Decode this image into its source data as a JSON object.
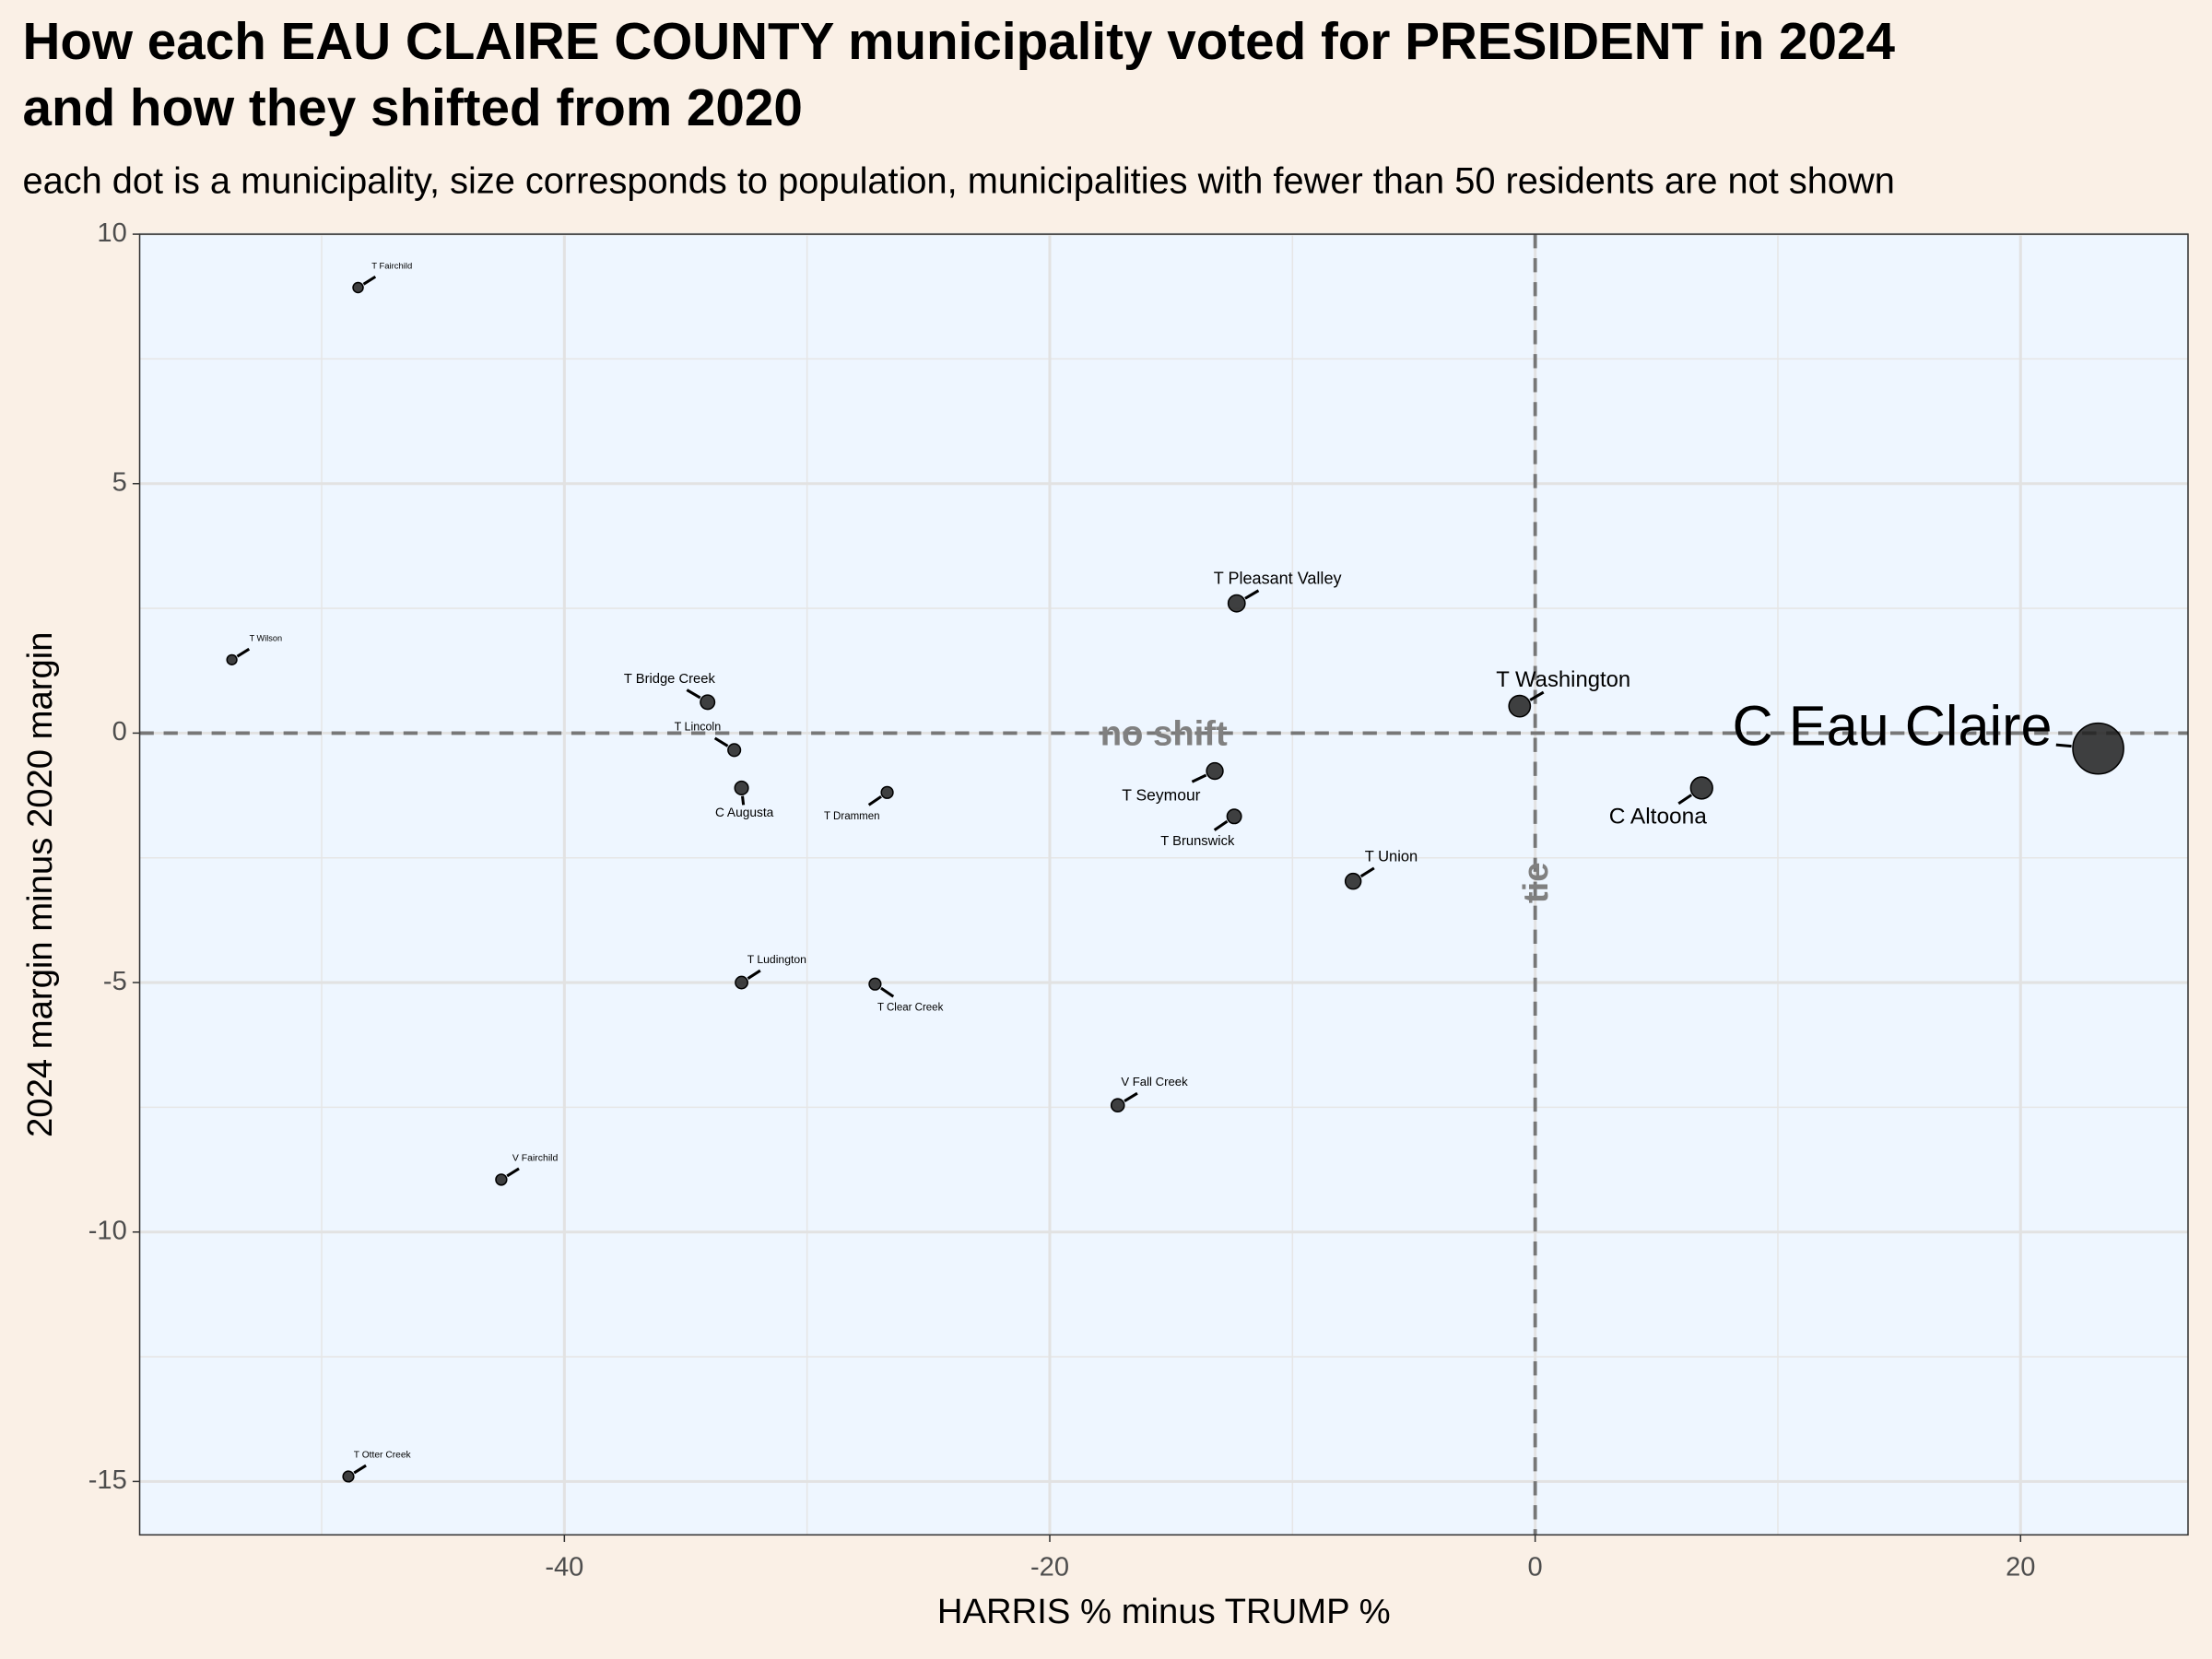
{
  "chart_data": {
    "type": "scatter",
    "title_lines": [
      "How each EAU CLAIRE COUNTY municipality voted for PRESIDENT in 2024",
      "and how they shifted from 2020"
    ],
    "subtitle": "each dot is a municipality, size corresponds to population, municipalities with fewer than 50 residents are not shown",
    "x_label": "HARRIS % minus TRUMP %",
    "y_label": "2024 margin minus 2020 margin",
    "xlim": [
      -57.5,
      26.9
    ],
    "ylim": [
      -16.07,
      10
    ],
    "xticks": [
      -40,
      -20,
      0,
      20
    ],
    "yticks": [
      -15,
      -10,
      -5,
      0,
      5,
      10
    ],
    "x_minor_grid": [
      -50,
      -30,
      -10,
      10
    ],
    "y_minor_grid": [
      -12.5,
      -7.5,
      -2.5,
      2.5,
      7.5
    ],
    "grid": true,
    "color": "#1e1e1e",
    "annotations": [
      {
        "text": "no shift",
        "x": -15.3,
        "y": 0
      },
      {
        "text": "tie",
        "x": 0,
        "y": -3.0
      }
    ],
    "points": [
      {
        "name": "T Fairchild",
        "x": -48.5,
        "y": 8.93,
        "population": 350
      },
      {
        "name": "T Wilson",
        "x": -53.7,
        "y": 1.47,
        "population": 300
      },
      {
        "name": "T Bridge Creek",
        "x": -34.1,
        "y": 0.62,
        "population": 1900
      },
      {
        "name": "T Lincoln",
        "x": -33.0,
        "y": -0.34,
        "population": 1100
      },
      {
        "name": "C Augusta",
        "x": -32.7,
        "y": -1.1,
        "population": 1500
      },
      {
        "name": "T Drammen",
        "x": -26.7,
        "y": -1.19,
        "population": 800
      },
      {
        "name": "T Ludington",
        "x": -32.7,
        "y": -5.0,
        "population": 1000
      },
      {
        "name": "T Clear Creek",
        "x": -27.2,
        "y": -5.03,
        "population": 800
      },
      {
        "name": "V Fairchild",
        "x": -42.6,
        "y": -8.95,
        "population": 550
      },
      {
        "name": "T Otter Creek",
        "x": -48.9,
        "y": -14.9,
        "population": 500
      },
      {
        "name": "V Fall Creek",
        "x": -17.2,
        "y": -7.46,
        "population": 1300
      },
      {
        "name": "T Pleasant Valley",
        "x": -12.3,
        "y": 2.6,
        "population": 3500
      },
      {
        "name": "T Seymour",
        "x": -13.2,
        "y": -0.76,
        "population": 3200
      },
      {
        "name": "T Brunswick",
        "x": -12.4,
        "y": -1.67,
        "population": 1900
      },
      {
        "name": "T Union",
        "x": -7.5,
        "y": -2.97,
        "population": 2700
      },
      {
        "name": "T Washington",
        "x": -0.64,
        "y": 0.54,
        "population": 7500
      },
      {
        "name": "C Altoona",
        "x": 6.86,
        "y": -1.1,
        "population": 8000
      },
      {
        "name": "C Eau Claire",
        "x": 23.2,
        "y": -0.31,
        "population": 69000
      }
    ]
  }
}
